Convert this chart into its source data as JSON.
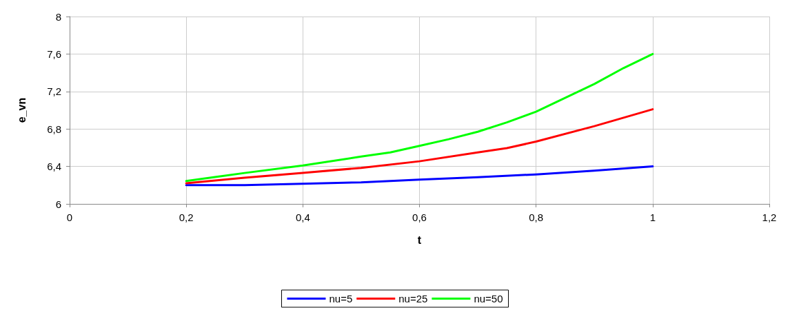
{
  "chart_data": {
    "type": "line",
    "xlabel": "t",
    "ylabel": "e_vn",
    "xlim": [
      0,
      1.2
    ],
    "ylim": [
      6,
      8
    ],
    "xticks": [
      0,
      {
        "value": 0.2,
        "label": "0,2"
      },
      {
        "value": 0.4,
        "label": "0,4"
      },
      {
        "value": 0.6,
        "label": "0,6"
      },
      {
        "value": 0.8,
        "label": "0,8"
      },
      1,
      {
        "value": 1.2,
        "label": "1,2"
      }
    ],
    "yticks": [
      6,
      {
        "value": 6.4,
        "label": "6,4"
      },
      {
        "value": 6.8,
        "label": "6,8"
      },
      {
        "value": 7.2,
        "label": "7,2"
      },
      {
        "value": 7.6,
        "label": "7,6"
      },
      8
    ],
    "grid": true,
    "legend": "bottom",
    "marker": "none",
    "line_style": "solid",
    "series": [
      {
        "name": "nu=5",
        "color": "#0000ff",
        "x": [
          0.2,
          0.3,
          0.4,
          0.5,
          0.6,
          0.7,
          0.8,
          0.9,
          1.0
        ],
        "values": [
          6.2,
          6.2,
          6.215,
          6.23,
          6.26,
          6.285,
          6.315,
          6.355,
          6.4
        ]
      },
      {
        "name": "nu=25",
        "color": "#ff0000",
        "x": [
          0.2,
          0.3,
          0.4,
          0.5,
          0.6,
          0.7,
          0.75,
          0.8,
          0.9,
          1.0
        ],
        "values": [
          6.22,
          6.28,
          6.33,
          6.385,
          6.455,
          6.55,
          6.595,
          6.665,
          6.83,
          7.01
        ]
      },
      {
        "name": "nu=50",
        "color": "#00ff00",
        "x": [
          0.2,
          0.3,
          0.4,
          0.5,
          0.55,
          0.6,
          0.65,
          0.7,
          0.75,
          0.8,
          0.9,
          0.95,
          1.0
        ],
        "values": [
          6.245,
          6.33,
          6.41,
          6.505,
          6.55,
          6.62,
          6.69,
          6.77,
          6.87,
          6.985,
          7.28,
          7.45,
          7.6
        ]
      }
    ]
  }
}
